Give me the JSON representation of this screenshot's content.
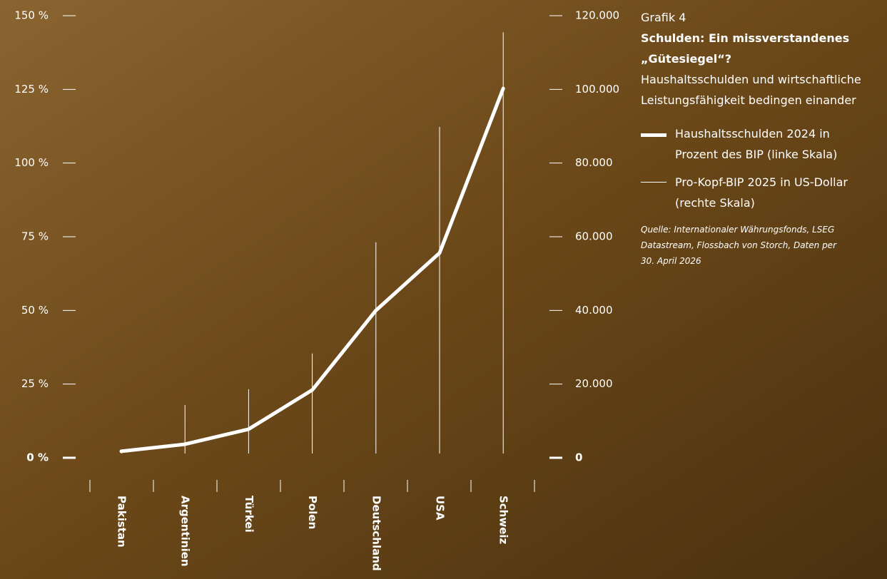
{
  "chart_data": {
    "type": "line",
    "label": "Grafik 4",
    "title": "Schulden: Ein missverstandenes „Gütesiegel“?",
    "subtitle": "Haushaltsschulden und wirtschaftliche Leistungsfähigkeit bedingen einander",
    "source": "Quelle: Internationaler Währungsfonds, LSEG Datastream, Flossbach von Storch, Daten per 30. April 2026",
    "categories": [
      "Pakistan",
      "Argentinien",
      "Türkei",
      "Polen",
      "Deutschland",
      "USA",
      "Schweiz"
    ],
    "series": [
      {
        "name": "Haushaltsschulden 2024 in Prozent des BIP (linke Skala)",
        "color": "#ffffff",
        "values": [
          2.2,
          4.6,
          9.7,
          23,
          50,
          69.5,
          125.3
        ]
      },
      {
        "name": "Pro-Kopf-BIP 2025 in US-Dollar (rechte Skala)",
        "color": "#ffffff",
        "axis": "y2",
        "values": [
          1500,
          14300,
          18600,
          28300,
          58500,
          89800,
          115500
        ]
      }
    ],
    "ylim": [
      0,
      150
    ],
    "yticks": [
      {
        "value": 0,
        "label": "0 %"
      },
      {
        "value": 25,
        "label": "25 %"
      },
      {
        "value": 50,
        "label": "50 %"
      },
      {
        "value": 75,
        "label": "75 %"
      },
      {
        "value": 100,
        "label": "100 %"
      },
      {
        "value": 125,
        "label": "125 %"
      },
      {
        "value": 150,
        "label": "150 %"
      }
    ],
    "y2lim": [
      0,
      120000
    ],
    "y2ticks": [
      0,
      {
        "value": 20000,
        "label": "20.000"
      },
      {
        "value": 40000,
        "label": "40.000"
      },
      {
        "value": 60000,
        "label": "60.000"
      },
      {
        "value": 80000,
        "label": "80.000"
      },
      {
        "value": 100000,
        "label": "100.000"
      },
      {
        "value": 120000,
        "label": "120.000"
      }
    ]
  }
}
